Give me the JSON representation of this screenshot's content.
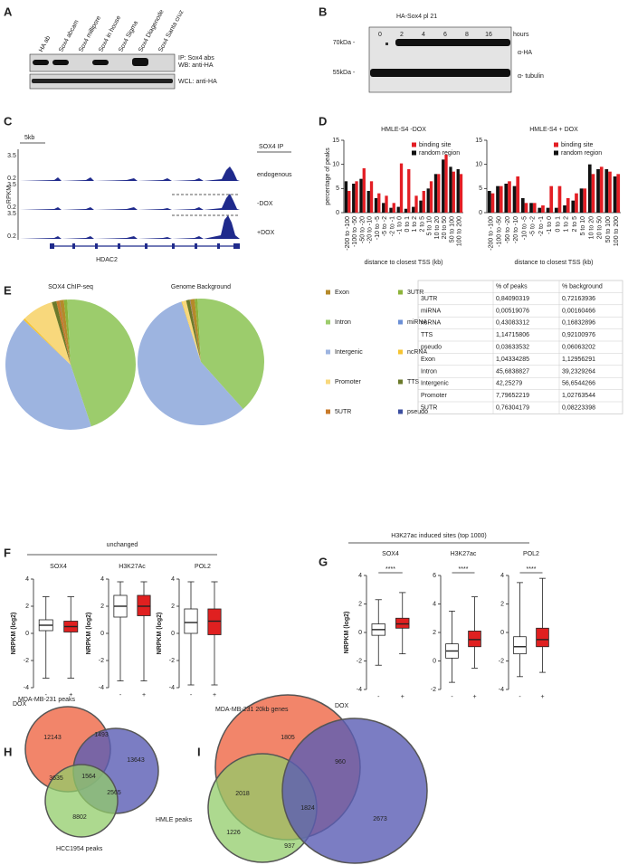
{
  "panel_labels": [
    "A",
    "B",
    "C",
    "D",
    "E",
    "F",
    "G",
    "H",
    "I"
  ],
  "blot_a": {
    "lanes": [
      "HA ab",
      "Sox4 abcam",
      "Sox4 millipore",
      "Sox4 in house",
      "Sox4 Sigma",
      "Sox4 Diagenode",
      "Sox4 Santa cruz"
    ],
    "labels": [
      "IP: Sox4 abs",
      "WB: anti-HA",
      "WCL: anti-HA"
    ]
  },
  "blot_b": {
    "title": "HA-Sox4 pl 21",
    "timepoints": [
      "0",
      "2",
      "4",
      "6",
      "8",
      "16"
    ],
    "unit": "hours",
    "markers": [
      "70kDa -",
      "55kDa -"
    ],
    "labels": [
      "α-HA",
      "α- tubulin"
    ]
  },
  "track_c": {
    "scale": "5kb",
    "y_label": "RPKM",
    "title": "SOX4 IP",
    "tracks": [
      "endogenous",
      "-DOX",
      "+DOX"
    ],
    "track_max": [
      "3.5",
      "3.5",
      "3.5"
    ],
    "track_min": [
      "0.2",
      "0.2",
      "0.2"
    ],
    "gene": "HDAC2"
  },
  "chart_data": [
    {
      "type": "bar",
      "title": "HMLE-S4 -DOX",
      "y_label": "percentage of peaks",
      "x_label": "distance to closest TSS (kb)",
      "categories": [
        "-200 to -100",
        "-100 to -50",
        "-50 to -20",
        "-20 to -10",
        "-10 to -5",
        "-5 to -2",
        "-2 to -1",
        "-1 to 0",
        "0 to 1",
        "1 to 2",
        "2 to 5",
        "5 to 10",
        "10 to 20",
        "20 to 50",
        "50 to 100",
        "100 to 200"
      ],
      "series": [
        {
          "name": "binding site",
          "color": "#e31e24",
          "values": [
            4.5,
            6.5,
            9.2,
            6.5,
            4,
            3.5,
            2,
            10.2,
            9,
            3.5,
            4.5,
            6.5,
            8,
            12,
            8.5,
            8
          ]
        },
        {
          "name": "random region",
          "color": "#111111",
          "values": [
            6.5,
            6,
            7,
            4.5,
            3,
            2,
            1,
            1.2,
            0.8,
            1.2,
            2.5,
            5,
            8,
            11,
            9.5,
            9
          ]
        }
      ],
      "ylim": [
        0,
        15
      ],
      "yticks": [
        0,
        5,
        10,
        15
      ]
    },
    {
      "type": "bar",
      "title": "HMLE-S4 + DOX",
      "x_label": "distance to closest TSS (kb)",
      "categories": [
        "-200 to -100",
        "-100 to -50",
        "-50 to -20",
        "-20 to -10",
        "-10 to -5",
        "-5 to -2",
        "-2 to -1",
        "-1 to 0",
        "0 to 1",
        "1 to 2",
        "2 to 5",
        "5 to 10",
        "10 to 20",
        "20 to 50",
        "50 to 100",
        "100 to 200"
      ],
      "series": [
        {
          "name": "binding site",
          "color": "#e31e24",
          "values": [
            4,
            5.5,
            6.5,
            7.5,
            2,
            2,
            1.5,
            5.5,
            5.5,
            3,
            4,
            5,
            8,
            9.5,
            8.5,
            8
          ]
        },
        {
          "name": "random region",
          "color": "#111111",
          "values": [
            4.5,
            5.5,
            6,
            5.5,
            3,
            2,
            1,
            1,
            1,
            1.5,
            2.5,
            5,
            10,
            9,
            9,
            7.5
          ]
        }
      ],
      "ylim": [
        0,
        15
      ],
      "yticks": [
        0,
        5,
        10,
        15
      ]
    },
    {
      "type": "pie",
      "categories": [
        "Exon",
        "3UTR",
        "Intron",
        "miRNA",
        "Intergenic",
        "ncRNA",
        "Promoter",
        "TTS",
        "5UTR",
        "pseudo"
      ],
      "colors": [
        "#b58a2a",
        "#8db33a",
        "#9ccc6c",
        "#6b8fd6",
        "#9db4e0",
        "#f5c431",
        "#f8d87c",
        "#6b7a2a",
        "#c87a2a",
        "#3c4ea0"
      ],
      "series": [
        {
          "name": "SOX4 ChIP-seq",
          "values": [
            1.04334285,
            0.84090319,
            45.6838827,
            0.00519076,
            42.25279,
            0.43083312,
            7.79652219,
            1.14715806,
            0.76304179,
            0.03633532
          ]
        },
        {
          "name": "Genome Background",
          "values": [
            1.12956291,
            0.72163936,
            39.2329264,
            0.00160466,
            56.6544266,
            0.16832896,
            1.02763544,
            0.92100976,
            0.08223398,
            0.06063202
          ]
        }
      ]
    },
    {
      "type": "box",
      "title": "SOX4",
      "y_label": "NRPKM (log2)",
      "categories": [
        "-",
        "+"
      ],
      "colors": [
        "#ffffff",
        "#e02020"
      ],
      "boxes": [
        {
          "whislo": -3.3,
          "q1": 0.2,
          "med": 0.6,
          "q3": 1.0,
          "whishi": 2.7
        },
        {
          "whislo": -3.3,
          "q1": 0.1,
          "med": 0.5,
          "q3": 0.9,
          "whishi": 2.7
        }
      ],
      "ylim": [
        -4,
        4
      ],
      "yticks": [
        -4,
        -2,
        0,
        2,
        4
      ]
    },
    {
      "type": "box",
      "title": "H3K27Ac",
      "y_label": "NRPKM (log2)",
      "categories": [
        "-",
        "+"
      ],
      "colors": [
        "#ffffff",
        "#e02020"
      ],
      "boxes": [
        {
          "whislo": -3.5,
          "q1": 1.2,
          "med": 2.0,
          "q3": 2.8,
          "whishi": 3.8
        },
        {
          "whislo": -3.5,
          "q1": 1.3,
          "med": 2.0,
          "q3": 2.8,
          "whishi": 3.8
        }
      ],
      "ylim": [
        -4,
        4
      ],
      "yticks": [
        -4,
        -2,
        0,
        2,
        4
      ]
    },
    {
      "type": "box",
      "title": "POL2",
      "y_label": "NRPKM (log2)",
      "categories": [
        "-",
        "+"
      ],
      "colors": [
        "#ffffff",
        "#e02020"
      ],
      "boxes": [
        {
          "whislo": -3.8,
          "q1": 0,
          "med": 0.8,
          "q3": 1.8,
          "whishi": 3.8
        },
        {
          "whislo": -3.8,
          "q1": -0.1,
          "med": 0.9,
          "q3": 1.8,
          "whishi": 3.8
        }
      ],
      "ylim": [
        -4,
        4
      ],
      "yticks": [
        -4,
        -2,
        0,
        2,
        4
      ]
    },
    {
      "type": "box",
      "title": "SOX4",
      "y_label": "NRPKM (log2)",
      "annotation": "****",
      "categories": [
        "-",
        "+"
      ],
      "colors": [
        "#ffffff",
        "#e02020"
      ],
      "boxes": [
        {
          "whislo": -2.3,
          "q1": -0.2,
          "med": 0.2,
          "q3": 0.6,
          "whishi": 2.3
        },
        {
          "whislo": -1.5,
          "q1": 0.3,
          "med": 0.6,
          "q3": 1.0,
          "whishi": 2.8
        }
      ],
      "ylim": [
        -4,
        4
      ],
      "yticks": [
        -4,
        -2,
        0,
        2,
        4
      ]
    },
    {
      "type": "box",
      "title": "H3K27ac",
      "annotation": "****",
      "categories": [
        "-",
        "+"
      ],
      "colors": [
        "#ffffff",
        "#e02020"
      ],
      "boxes": [
        {
          "whislo": -1.5,
          "q1": 0.2,
          "med": 0.7,
          "q3": 1.2,
          "whishi": 3.5
        },
        {
          "whislo": -0.5,
          "q1": 1.0,
          "med": 1.5,
          "q3": 2.1,
          "whishi": 4.5
        }
      ],
      "ylim": [
        -2,
        6
      ],
      "yticks": [
        -2,
        0,
        2,
        4,
        6
      ]
    },
    {
      "type": "box",
      "title": "POL2",
      "annotation": "****",
      "categories": [
        "-",
        "+"
      ],
      "colors": [
        "#ffffff",
        "#e02020"
      ],
      "boxes": [
        {
          "whislo": -3.1,
          "q1": -1.5,
          "med": -1.0,
          "q3": -0.3,
          "whishi": 3.5
        },
        {
          "whislo": -2.8,
          "q1": -1.0,
          "med": -0.5,
          "q3": 0.3,
          "whishi": 3.8
        }
      ],
      "ylim": [
        -4,
        4
      ],
      "yticks": [
        -4,
        -2,
        0,
        2,
        4
      ]
    }
  ],
  "table_e": {
    "header": [
      "% of peaks",
      "% background"
    ],
    "rows": [
      [
        "3UTR",
        "0,84090319",
        "0,72163936"
      ],
      [
        "miRNA",
        "0,00519076",
        "0,00160466"
      ],
      [
        "ncRNA",
        "0,43083312",
        "0,16832896"
      ],
      [
        "TTS",
        "1,14715806",
        "0,92100976"
      ],
      [
        "pseudo",
        "0,03633532",
        "0,06063202"
      ],
      [
        "Exon",
        "1,04334285",
        "1,12956291"
      ],
      [
        "Intron",
        "45,6838827",
        "39,2329264"
      ],
      [
        "Intergenic",
        "42,25279",
        "56,6544266"
      ],
      [
        "Promoter",
        "7,79652219",
        "1,02763544"
      ],
      [
        "5UTR",
        "0,76304179",
        "0,08223398"
      ]
    ]
  },
  "panel_f": {
    "title": "unchanged",
    "x_label": "DOX"
  },
  "panel_g": {
    "title": "H3K27ac induced sites (top 1000)",
    "x_label": "DOX"
  },
  "venn_h": {
    "labels": [
      "MDA-MB-231 peaks",
      "HMLE peaks",
      "HCC1954 peaks"
    ],
    "counts": [
      12143,
      1493,
      13643,
      3635,
      1564,
      2565,
      8802
    ]
  },
  "venn_i": {
    "labels": [
      "MDA-MB-231 20kb genes"
    ],
    "counts": [
      1805,
      960,
      2018,
      1824,
      2673,
      1226,
      937
    ]
  }
}
